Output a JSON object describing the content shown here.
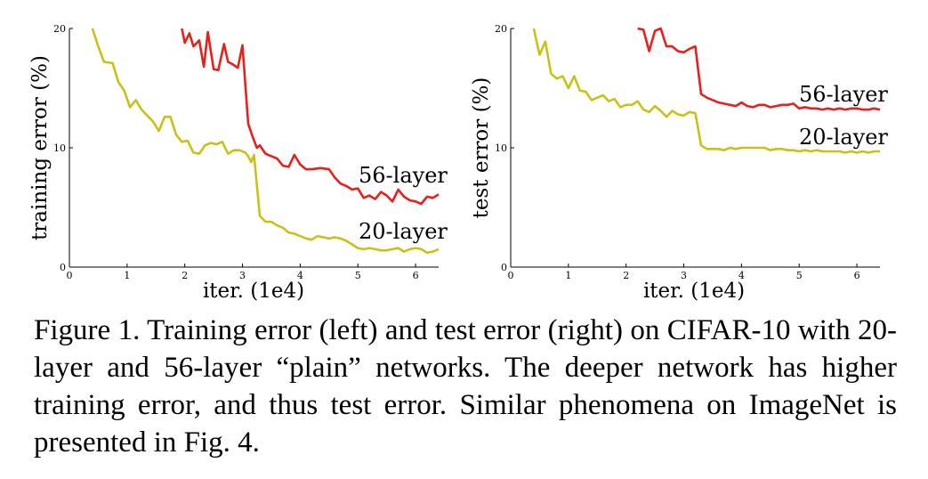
{
  "chart_data": [
    {
      "type": "line",
      "xlabel": "iter. (1e4)",
      "ylabel": "training error (%)",
      "xlim": [
        0,
        6.4
      ],
      "ylim": [
        0,
        20
      ],
      "xticks": [
        0,
        1,
        2,
        3,
        4,
        5,
        6
      ],
      "yticks": [
        0,
        10,
        20
      ],
      "series": [
        {
          "name": "56-layer",
          "color": "#e8201c",
          "x": [
            1.95,
            2.0,
            2.08,
            2.15,
            2.25,
            2.33,
            2.4,
            2.5,
            2.58,
            2.68,
            2.75,
            2.83,
            2.92,
            3.0,
            3.1,
            3.17,
            3.25,
            3.3,
            3.4,
            3.5,
            3.6,
            3.7,
            3.8,
            3.9,
            4.0,
            4.1,
            4.2,
            4.35,
            4.5,
            4.6,
            4.7,
            4.8,
            4.9,
            5.0,
            5.1,
            5.2,
            5.3,
            5.4,
            5.5,
            5.6,
            5.7,
            5.8,
            5.9,
            6.0,
            6.1,
            6.2,
            6.3,
            6.4
          ],
          "y": [
            20.0,
            18.8,
            19.6,
            18.5,
            19.0,
            16.8,
            19.7,
            16.6,
            16.5,
            18.7,
            17.2,
            17.0,
            16.7,
            18.6,
            12.0,
            11.0,
            10.0,
            10.2,
            9.5,
            9.3,
            9.1,
            8.5,
            8.4,
            9.4,
            8.6,
            8.2,
            8.2,
            8.3,
            8.2,
            7.5,
            7.0,
            6.8,
            6.5,
            6.6,
            5.8,
            6.0,
            5.7,
            6.3,
            6.0,
            5.5,
            6.5,
            5.9,
            5.6,
            5.5,
            5.3,
            5.9,
            5.8,
            6.1
          ]
        },
        {
          "name": "20-layer",
          "color": "#c8c216",
          "x": [
            0.4,
            0.5,
            0.6,
            0.75,
            0.85,
            0.95,
            1.05,
            1.15,
            1.25,
            1.35,
            1.45,
            1.55,
            1.65,
            1.75,
            1.85,
            1.95,
            2.05,
            2.15,
            2.25,
            2.35,
            2.45,
            2.55,
            2.65,
            2.75,
            2.85,
            2.95,
            3.05,
            3.1,
            3.15,
            3.2,
            3.3,
            3.4,
            3.5,
            3.6,
            3.7,
            3.8,
            3.9,
            4.0,
            4.1,
            4.2,
            4.3,
            4.4,
            4.5,
            4.6,
            4.7,
            4.8,
            4.9,
            5.0,
            5.1,
            5.2,
            5.3,
            5.4,
            5.5,
            5.6,
            5.7,
            5.8,
            5.9,
            6.0,
            6.1,
            6.2,
            6.3,
            6.4
          ],
          "y": [
            20.0,
            18.5,
            17.2,
            17.1,
            15.5,
            14.8,
            13.4,
            14.0,
            13.2,
            12.7,
            12.2,
            11.4,
            12.6,
            12.6,
            11.1,
            10.5,
            10.6,
            9.6,
            9.5,
            10.2,
            10.4,
            10.3,
            10.5,
            9.5,
            9.8,
            9.8,
            9.6,
            9.3,
            8.8,
            9.4,
            4.3,
            3.8,
            3.8,
            3.5,
            3.3,
            2.9,
            2.8,
            2.6,
            2.4,
            2.3,
            2.6,
            2.5,
            2.4,
            2.5,
            2.4,
            2.2,
            1.9,
            1.6,
            1.5,
            1.6,
            1.5,
            1.4,
            1.4,
            1.5,
            1.6,
            1.3,
            1.5,
            1.6,
            1.5,
            1.2,
            1.3,
            1.5
          ]
        }
      ]
    },
    {
      "type": "line",
      "xlabel": "iter. (1e4)",
      "ylabel": "test error (%)",
      "xlim": [
        0,
        6.4
      ],
      "ylim": [
        0,
        20
      ],
      "xticks": [
        0,
        1,
        2,
        3,
        4,
        5,
        6
      ],
      "yticks": [
        0,
        10,
        20
      ],
      "series": [
        {
          "name": "56-layer",
          "color": "#e8201c",
          "x": [
            2.2,
            2.3,
            2.4,
            2.5,
            2.6,
            2.7,
            2.8,
            2.9,
            3.0,
            3.1,
            3.2,
            3.3,
            3.4,
            3.5,
            3.6,
            3.7,
            3.8,
            3.9,
            4.0,
            4.1,
            4.2,
            4.3,
            4.4,
            4.5,
            4.6,
            4.7,
            4.8,
            4.9,
            5.0,
            5.1,
            5.2,
            5.3,
            5.4,
            5.5,
            5.6,
            5.7,
            5.8,
            5.9,
            6.0,
            6.1,
            6.2,
            6.3,
            6.4
          ],
          "y": [
            20.0,
            19.9,
            18.1,
            19.8,
            20.0,
            18.5,
            18.5,
            18.1,
            18.0,
            18.3,
            18.5,
            14.5,
            14.2,
            14.0,
            13.8,
            13.7,
            13.6,
            13.5,
            13.8,
            13.5,
            13.4,
            13.6,
            13.6,
            13.4,
            13.5,
            13.6,
            13.6,
            13.7,
            13.3,
            13.4,
            13.3,
            13.3,
            13.2,
            13.3,
            13.2,
            13.3,
            13.2,
            13.3,
            13.3,
            13.2,
            13.2,
            13.3,
            13.2
          ]
        },
        {
          "name": "20-layer",
          "color": "#c8c216",
          "x": [
            0.4,
            0.5,
            0.6,
            0.7,
            0.8,
            0.9,
            1.0,
            1.1,
            1.2,
            1.3,
            1.4,
            1.5,
            1.6,
            1.7,
            1.8,
            1.9,
            2.0,
            2.1,
            2.2,
            2.3,
            2.4,
            2.5,
            2.6,
            2.7,
            2.8,
            2.9,
            3.0,
            3.1,
            3.2,
            3.3,
            3.4,
            3.5,
            3.6,
            3.7,
            3.8,
            3.9,
            4.0,
            4.1,
            4.2,
            4.3,
            4.4,
            4.5,
            4.6,
            4.7,
            4.8,
            4.9,
            5.0,
            5.1,
            5.2,
            5.3,
            5.4,
            5.5,
            5.6,
            5.7,
            5.8,
            5.9,
            6.0,
            6.1,
            6.2,
            6.3,
            6.4
          ],
          "y": [
            20.0,
            17.8,
            18.9,
            16.2,
            15.8,
            16.0,
            15.0,
            16.0,
            14.8,
            14.7,
            14.0,
            14.2,
            14.4,
            13.9,
            14.1,
            13.4,
            13.6,
            13.6,
            13.9,
            13.2,
            13.0,
            13.5,
            13.1,
            12.6,
            13.1,
            12.8,
            12.7,
            13.0,
            12.9,
            10.2,
            9.9,
            9.9,
            9.9,
            9.8,
            10.0,
            9.9,
            10.0,
            10.0,
            10.0,
            10.0,
            10.0,
            9.8,
            9.9,
            9.9,
            9.8,
            9.8,
            9.7,
            9.8,
            9.7,
            9.8,
            9.7,
            9.7,
            9.7,
            9.7,
            9.6,
            9.7,
            9.6,
            9.7,
            9.6,
            9.7,
            9.7
          ]
        }
      ]
    }
  ],
  "labels": {
    "left_56": "56-layer",
    "left_20": "20-layer",
    "right_56": "56-layer",
    "right_20": "20-layer"
  },
  "caption": "Figure 1. Training error (left) and test error (right) on CIFAR-10 with 20-layer and 56-layer “plain” networks. The deeper network has higher training error, and thus test error. Similar phenomena on ImageNet is presented in Fig. 4."
}
